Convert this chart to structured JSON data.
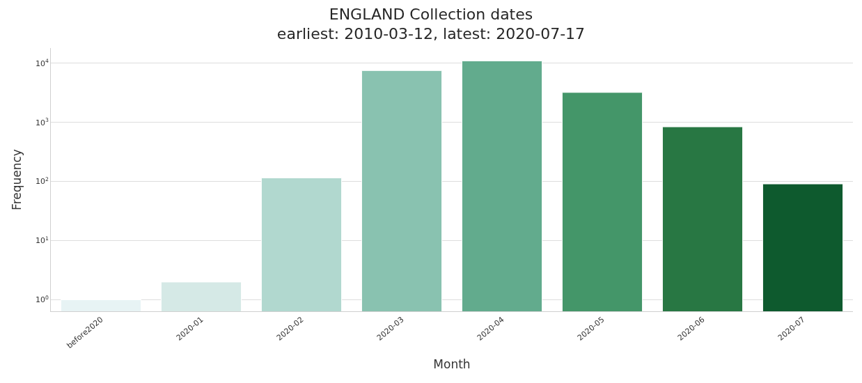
{
  "chart_data": {
    "type": "bar",
    "title": "ENGLAND Collection dates\nearliest: 2010-03-12, latest: 2020-07-17",
    "xlabel": "Month",
    "ylabel": "Frequency",
    "categories": [
      "before2020",
      "2020-01",
      "2020-02",
      "2020-03",
      "2020-04",
      "2020-05",
      "2020-06",
      "2020-07"
    ],
    "values": [
      1,
      2,
      115,
      7500,
      10900,
      3200,
      840,
      91
    ],
    "colors": [
      "#e7f3f4",
      "#d5e9e6",
      "#b1d8cf",
      "#89c2b0",
      "#62ab8d",
      "#449669",
      "#287743",
      "#0e5a2e"
    ],
    "log": true,
    "ylim": [
      0.64,
      18000
    ],
    "yticks": [
      {
        "value": 1,
        "label": "10$^{0}$"
      },
      {
        "value": 10,
        "label": "10$^{1}$"
      },
      {
        "value": 100,
        "label": "10$^{2}$"
      },
      {
        "value": 1000,
        "label": "10$^{3}$"
      },
      {
        "value": 10000,
        "label": "10$^{4}$"
      }
    ],
    "grid": "y"
  }
}
